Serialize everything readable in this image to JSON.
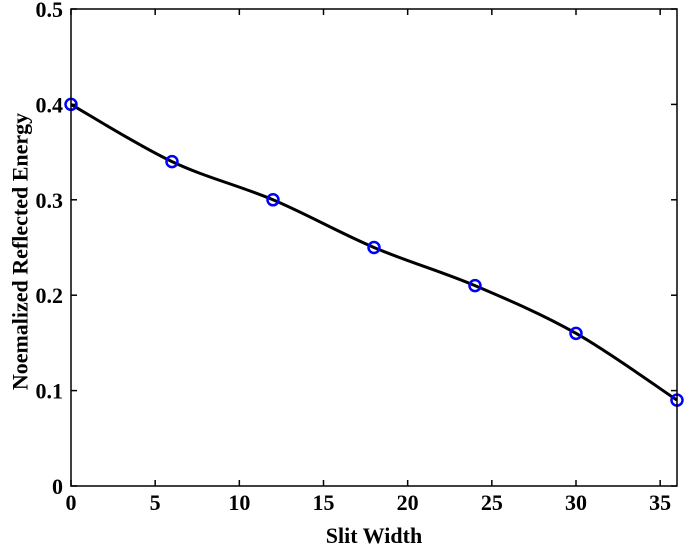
{
  "chart_data": {
    "type": "line",
    "title": "",
    "xlabel": "Slit Width",
    "ylabel": "Noemalized Reflected Energy",
    "xlim": [
      0,
      36
    ],
    "ylim": [
      0,
      0.5
    ],
    "x_ticks": [
      "0",
      "5",
      "10",
      "15",
      "20",
      "25",
      "30",
      "35"
    ],
    "y_ticks": [
      "0",
      "0.1",
      "0.2",
      "0.3",
      "0.4",
      "0.5"
    ],
    "grid": false,
    "legend": "none",
    "series": [
      {
        "x": [
          0,
          6,
          12,
          18,
          24,
          30,
          36
        ],
        "y": [
          0.4,
          0.34,
          0.3,
          0.25,
          0.21,
          0.16,
          0.09
        ],
        "line_color": "#000000",
        "marker_color": "#0000ff",
        "marker": "circle"
      }
    ]
  }
}
